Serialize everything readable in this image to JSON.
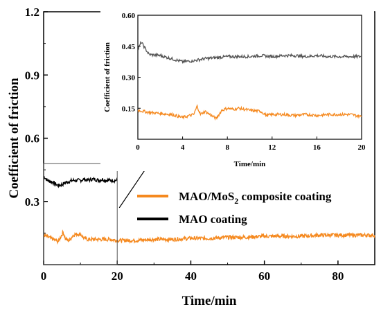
{
  "chart_data": [
    {
      "type": "line",
      "role": "main",
      "xlabel": "Time/min",
      "ylabel": "Coefficient of friction",
      "xlim": [
        0,
        90
      ],
      "ylim": [
        0,
        1.2
      ],
      "xticks": [
        "0",
        "20",
        "40",
        "60",
        "80"
      ],
      "yticks": [
        "0.3",
        "0.6",
        "0.9",
        "1.2"
      ],
      "colors": {
        "mao": "#000000",
        "mos2": "#f5891f"
      },
      "series": [
        {
          "name": "MAO coating",
          "color": "#000000",
          "x": [
            0,
            1,
            2,
            3,
            4,
            5,
            6,
            7,
            8,
            9,
            10,
            11,
            12,
            13,
            14,
            15,
            16,
            17,
            18,
            19,
            20
          ],
          "y": [
            0.42,
            0.4,
            0.395,
            0.385,
            0.375,
            0.38,
            0.39,
            0.395,
            0.4,
            0.4,
            0.4,
            0.405,
            0.4,
            0.405,
            0.405,
            0.4,
            0.405,
            0.4,
            0.4,
            0.4,
            0.4
          ]
        },
        {
          "name": "MAO/MoS2 composite coating",
          "color": "#f5891f",
          "x": [
            0,
            2,
            4,
            5.3,
            6,
            7,
            8,
            9,
            10,
            11,
            12,
            14,
            16,
            18,
            20,
            25,
            30,
            35,
            40,
            45,
            50,
            55,
            60,
            65,
            70,
            75,
            80,
            85,
            90
          ],
          "y": [
            0.14,
            0.125,
            0.11,
            0.155,
            0.12,
            0.115,
            0.14,
            0.145,
            0.145,
            0.125,
            0.12,
            0.12,
            0.12,
            0.12,
            0.115,
            0.115,
            0.12,
            0.12,
            0.125,
            0.125,
            0.13,
            0.13,
            0.135,
            0.135,
            0.135,
            0.14,
            0.14,
            0.14,
            0.14
          ]
        }
      ],
      "legend": {
        "position": "lower-right",
        "mos2_label_main": "MAO/MoS",
        "mos2_label_sub": "2",
        "mos2_label_rest": " composite coating",
        "mao_label": "MAO coating"
      }
    },
    {
      "type": "line",
      "role": "inset",
      "xlabel": "Time/min",
      "ylabel": "Coefficient of friction",
      "xlim": [
        0,
        20
      ],
      "ylim": [
        0,
        0.6
      ],
      "xticks": [
        "0",
        "4",
        "8",
        "12",
        "16",
        "20"
      ],
      "yticks": [
        "0.15",
        "0.30",
        "0.45",
        "0.60"
      ],
      "series": [
        {
          "name": "MAO coating",
          "color": "#555555",
          "x": [
            0,
            0.3,
            1,
            2,
            3,
            4,
            5,
            6,
            7,
            8,
            9,
            10,
            11,
            12,
            13,
            14,
            15,
            16,
            17,
            18,
            19,
            20
          ],
          "y": [
            0.43,
            0.47,
            0.41,
            0.405,
            0.39,
            0.375,
            0.38,
            0.39,
            0.395,
            0.4,
            0.4,
            0.4,
            0.405,
            0.4,
            0.405,
            0.405,
            0.4,
            0.405,
            0.4,
            0.4,
            0.4,
            0.4
          ]
        },
        {
          "name": "MAO/MoS2 composite coating",
          "color": "#f5891f",
          "x": [
            0,
            1,
            2,
            3,
            4,
            5,
            5.3,
            5.6,
            6,
            7,
            7.5,
            8,
            8.5,
            9,
            10,
            11,
            11.5,
            12,
            13,
            14,
            15,
            16,
            17,
            18,
            19,
            20
          ],
          "y": [
            0.14,
            0.13,
            0.125,
            0.12,
            0.105,
            0.12,
            0.16,
            0.12,
            0.135,
            0.1,
            0.14,
            0.15,
            0.145,
            0.15,
            0.14,
            0.135,
            0.115,
            0.12,
            0.12,
            0.115,
            0.12,
            0.115,
            0.12,
            0.12,
            0.12,
            0.11
          ]
        }
      ]
    }
  ]
}
